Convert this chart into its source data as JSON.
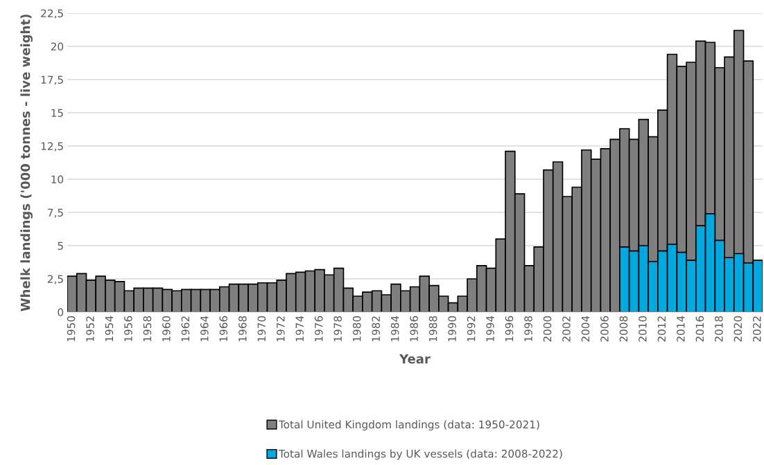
{
  "chart_data": {
    "type": "bar",
    "xlabel": "Year",
    "ylabel": "Whelk landings ('000 tonnes - live weight)",
    "categories": [
      "1950",
      null,
      "1952",
      null,
      "1954",
      null,
      "1956",
      null,
      "1958",
      null,
      "1960",
      null,
      "1962",
      null,
      "1964",
      null,
      "1966",
      null,
      "1968",
      null,
      "1970",
      null,
      "1972",
      null,
      "1974",
      null,
      "1976",
      null,
      "1978",
      null,
      "1980",
      null,
      "1982",
      null,
      "1984",
      null,
      "1986",
      null,
      "1988",
      null,
      "1990",
      null,
      "1992",
      null,
      "1994",
      null,
      "1996",
      null,
      "1998",
      null,
      "2000",
      null,
      "2002",
      null,
      "2004",
      null,
      "2006",
      null,
      "2008",
      null,
      "2010",
      null,
      "2012",
      null,
      "2014",
      null,
      "2016",
      null,
      "2018",
      null,
      "2020",
      null,
      "2022"
    ],
    "series": [
      {
        "name": "Total United Kingdom landings (data: 1950-2021)",
        "color": "#7f7f7f",
        "values": [
          2.7,
          2.9,
          2.4,
          2.7,
          2.4,
          2.3,
          1.6,
          1.8,
          1.8,
          1.8,
          1.7,
          1.6,
          1.7,
          1.7,
          1.7,
          1.7,
          1.9,
          2.1,
          2.1,
          2.1,
          2.2,
          2.2,
          2.4,
          2.9,
          3.0,
          3.1,
          3.2,
          2.8,
          3.3,
          1.8,
          1.2,
          1.5,
          1.6,
          1.3,
          2.1,
          1.6,
          1.9,
          2.7,
          2.0,
          1.2,
          0.7,
          1.2,
          2.5,
          3.5,
          3.3,
          5.5,
          12.1,
          8.9,
          3.5,
          4.9,
          10.7,
          11.3,
          8.7,
          9.4,
          12.2,
          11.5,
          12.3,
          13.0,
          13.8,
          13.0,
          14.5,
          13.2,
          15.2,
          19.4,
          18.5,
          18.8,
          20.4,
          20.3,
          18.4,
          19.2,
          21.2,
          18.9,
          null
        ]
      },
      {
        "name": "Total Wales landings by UK vessels (data: 2008-2022)",
        "color": "#00a8e0",
        "values": [
          null,
          null,
          null,
          null,
          null,
          null,
          null,
          null,
          null,
          null,
          null,
          null,
          null,
          null,
          null,
          null,
          null,
          null,
          null,
          null,
          null,
          null,
          null,
          null,
          null,
          null,
          null,
          null,
          null,
          null,
          null,
          null,
          null,
          null,
          null,
          null,
          null,
          null,
          null,
          null,
          null,
          null,
          null,
          null,
          null,
          null,
          null,
          null,
          null,
          null,
          null,
          null,
          null,
          null,
          null,
          null,
          null,
          null,
          4.9,
          4.6,
          5.0,
          3.8,
          4.6,
          5.1,
          4.5,
          3.9,
          6.5,
          7.4,
          5.4,
          4.1,
          4.4,
          3.7,
          3.9
        ]
      }
    ],
    "ylim": [
      0,
      22.5
    ],
    "yticks": [
      0,
      {
        "value": 2.5,
        "label": "2,5"
      },
      5,
      {
        "value": 7.5,
        "label": "7,5"
      },
      10,
      {
        "value": 12.5,
        "label": "12,5"
      },
      15,
      {
        "value": 17.5,
        "label": "17,5"
      },
      20,
      {
        "value": 22.5,
        "label": "22,5"
      }
    ],
    "grid": "y",
    "legend": "bottom"
  }
}
